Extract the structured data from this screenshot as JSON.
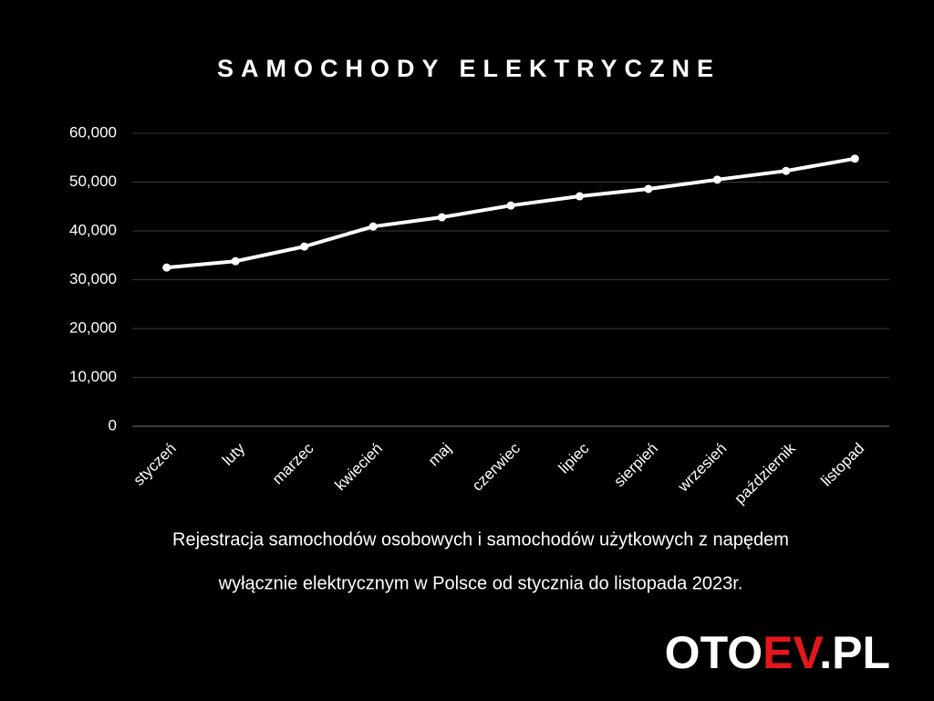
{
  "chart_data": {
    "type": "line",
    "title": "SAMOCHODY ELEKTRYCZNE",
    "categories": [
      "styczeń",
      "luty",
      "marzec",
      "kwiecień",
      "maj",
      "czerwiec",
      "lipiec",
      "sierpień",
      "wrzesień",
      "październik",
      "listopad"
    ],
    "values": [
      32500,
      33800,
      36800,
      40900,
      42800,
      45200,
      47100,
      48600,
      50500,
      52300,
      54800
    ],
    "color": "#ffffff",
    "ylim": [
      0,
      60000
    ],
    "yticks": [
      0,
      {
        "value": 10000,
        "label": "10,000"
      },
      {
        "value": 20000,
        "label": "20,000"
      },
      {
        "value": 30000,
        "label": "30,000"
      },
      {
        "value": 40000,
        "label": "40,000"
      },
      {
        "value": 50000,
        "label": "50,000"
      },
      {
        "value": 60000,
        "label": "60,000"
      }
    ],
    "grid": true,
    "subtitle": [
      "Rejestracja samochodów osobowych i samochodów użytkowych z napędem",
      "wyłącznie elektrycznym w Polsce od stycznia do listopada 2023r."
    ]
  },
  "logo": {
    "parts": [
      "OTO",
      "EV",
      ".PL"
    ],
    "accent_color": "#e3171b"
  }
}
